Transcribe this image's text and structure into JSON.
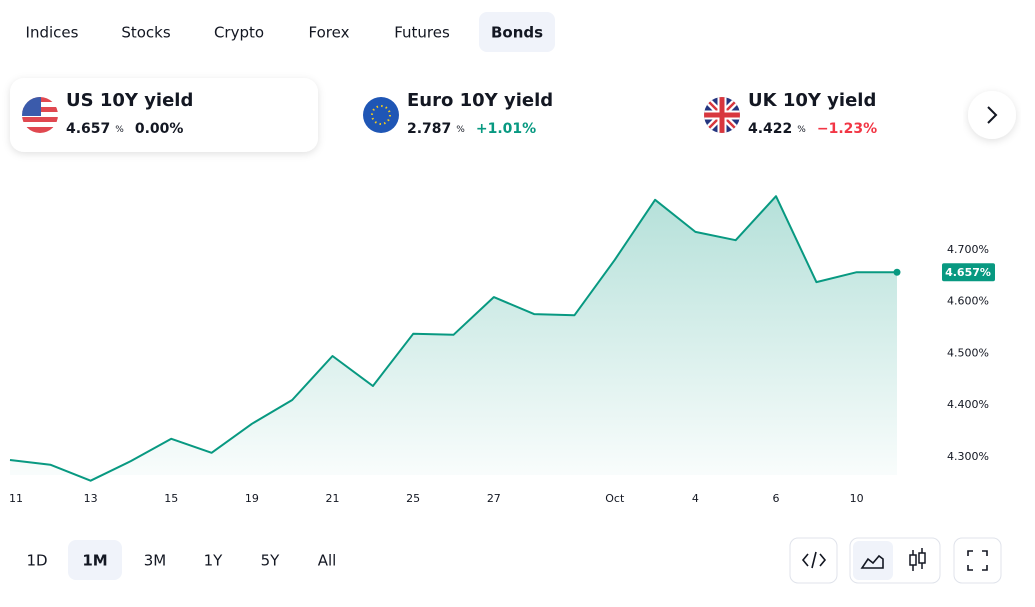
{
  "tabs": {
    "items": [
      "Indices",
      "Stocks",
      "Crypto",
      "Forex",
      "Futures",
      "Bonds"
    ],
    "active": 5
  },
  "tickers": [
    {
      "name": "US 10Y yield",
      "value": "4.657",
      "unit": "%",
      "change": "0.00%",
      "change_color": "#131722",
      "selected": true
    },
    {
      "name": "Euro 10Y yield",
      "value": "2.787",
      "unit": "%",
      "change": "+1.01%",
      "change_color": "#089981",
      "selected": false
    },
    {
      "name": "UK 10Y yield",
      "value": "4.422",
      "unit": "%",
      "change": "−1.23%",
      "change_color": "#f23645",
      "selected": false
    }
  ],
  "chart_data": {
    "type": "line",
    "categories": [
      "11",
      null,
      "13",
      null,
      "15",
      null,
      "19",
      null,
      "21",
      null,
      "25",
      null,
      "27",
      null,
      null,
      "Oct",
      null,
      "4",
      null,
      "6",
      null,
      "10",
      null
    ],
    "values": [
      4.294,
      4.285,
      4.254,
      4.292,
      4.335,
      4.308,
      4.364,
      4.41,
      4.495,
      4.437,
      4.538,
      4.536,
      4.609,
      4.576,
      4.574,
      4.681,
      4.797,
      4.735,
      4.719,
      4.804,
      4.638,
      4.657,
      4.657
    ],
    "color": "#089981",
    "ylim": [
      4.265,
      4.874
    ],
    "yticks": [
      {
        "value": 4.3,
        "label": "4.300%"
      },
      {
        "value": 4.4,
        "label": "4.400%"
      },
      {
        "value": 4.5,
        "label": "4.500%"
      },
      {
        "value": 4.6,
        "label": "4.600%"
      },
      {
        "value": 4.7,
        "label": "4.700%"
      }
    ],
    "current_label": "4.657%",
    "grid": false
  },
  "ranges": {
    "items": [
      "1D",
      "1M",
      "3M",
      "1Y",
      "5Y",
      "All"
    ],
    "active": 1
  }
}
